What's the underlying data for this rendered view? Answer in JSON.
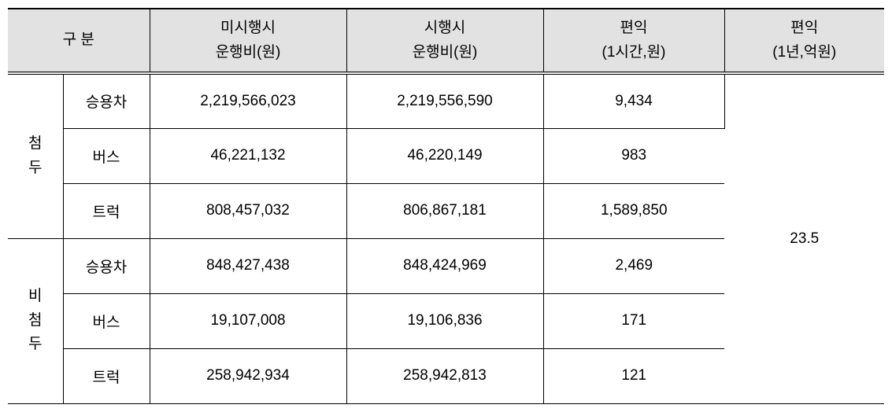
{
  "table": {
    "columns": {
      "group_header": "구  분",
      "col1_line1": "미시행시",
      "col1_line2": "운행비(원)",
      "col2_line1": "시행시",
      "col2_line2": "운행비(원)",
      "col3_line1": "편익",
      "col3_line2": "(1시간,원)",
      "col4_line1": "편익",
      "col4_line2": "(1년,억원)"
    },
    "header_bg": "#e2e2e2",
    "groups": [
      {
        "label_chars": [
          "첨",
          "두"
        ],
        "rows": [
          {
            "vehicle": "승용차",
            "c1": "2,219,566,023",
            "c2": "2,219,556,590",
            "c3": "9,434"
          },
          {
            "vehicle": "버스",
            "c1": "46,221,132",
            "c2": "46,220,149",
            "c3": "983"
          },
          {
            "vehicle": "트럭",
            "c1": "808,457,032",
            "c2": "806,867,181",
            "c3": "1,589,850"
          }
        ]
      },
      {
        "label_chars": [
          "비",
          "첨",
          "두"
        ],
        "rows": [
          {
            "vehicle": "승용차",
            "c1": "848,427,438",
            "c2": "848,424,969",
            "c3": "2,469"
          },
          {
            "vehicle": "버스",
            "c1": "19,107,008",
            "c2": "19,106,836",
            "c3": "171"
          },
          {
            "vehicle": "트럭",
            "c1": "258,942,934",
            "c2": "258,942,813",
            "c3": "121"
          }
        ]
      }
    ],
    "annual_benefit": "23.5"
  }
}
